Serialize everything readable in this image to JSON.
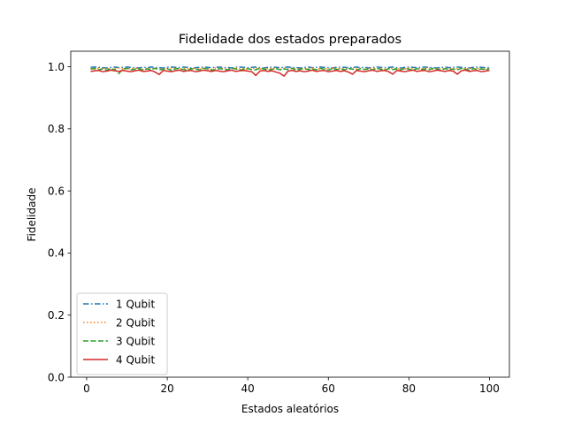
{
  "chart_data": {
    "type": "line",
    "title": "Fidelidade dos estados preparados",
    "xlabel": "Estados aleatórios",
    "ylabel": "Fidelidade",
    "xlim": [
      -3.95,
      104.95
    ],
    "ylim": [
      0.0,
      1.05
    ],
    "xticks": [
      0,
      20,
      40,
      60,
      80,
      100
    ],
    "yticks": [
      0.0,
      0.2,
      0.4,
      0.6,
      0.8,
      1.0
    ],
    "xtick_labels": [
      "0",
      "20",
      "40",
      "60",
      "80",
      "100"
    ],
    "ytick_labels": [
      "0.0",
      "0.2",
      "0.4",
      "0.6",
      "0.8",
      "1.0"
    ],
    "grid": false,
    "legend_position": "lower-left",
    "x_start": 1,
    "series": [
      {
        "name": "1 Qubit",
        "color": "#1f77b4",
        "style": "dashdot",
        "values": [
          0.998,
          0.999,
          0.998,
          0.997,
          0.996,
          0.998,
          0.999,
          0.997,
          0.998,
          0.999,
          0.998,
          0.997,
          0.996,
          0.998,
          0.997,
          0.999,
          0.998,
          0.997,
          0.996,
          0.998,
          0.999,
          0.998,
          0.997,
          0.999,
          0.998,
          0.996,
          0.997,
          0.998,
          0.999,
          0.998,
          0.997,
          0.998,
          0.999,
          0.997,
          0.998,
          0.996,
          0.998,
          0.999,
          0.998,
          0.997,
          0.998,
          0.999,
          0.997,
          0.996,
          0.998,
          0.999,
          0.998,
          0.997,
          0.998,
          0.999,
          0.998,
          0.997,
          0.996,
          0.998,
          0.999,
          0.997,
          0.998,
          0.999,
          0.998,
          0.997,
          0.996,
          0.998,
          0.999,
          0.998,
          0.997,
          0.998,
          0.999,
          0.997,
          0.998,
          0.996,
          0.998,
          0.999,
          0.998,
          0.997,
          0.998,
          0.999,
          0.997,
          0.996,
          0.998,
          0.999,
          0.998,
          0.997,
          0.998,
          0.999,
          0.998,
          0.997,
          0.996,
          0.998,
          0.999,
          0.997,
          0.998,
          0.999,
          0.998,
          0.997,
          0.996,
          0.998,
          0.999,
          0.998,
          0.997,
          0.998
        ]
      },
      {
        "name": "2 Qubit",
        "color": "#ff7f0e",
        "style": "dotted",
        "values": [
          0.995,
          0.992,
          0.996,
          0.993,
          0.995,
          0.991,
          0.994,
          0.996,
          0.992,
          0.995,
          0.993,
          0.996,
          0.994,
          0.991,
          0.995,
          0.993,
          0.996,
          0.992,
          0.994,
          0.995,
          0.993,
          0.996,
          0.991,
          0.994,
          0.995,
          0.992,
          0.996,
          0.993,
          0.995,
          0.994,
          0.991,
          0.996,
          0.993,
          0.995,
          0.992,
          0.994,
          0.996,
          0.993,
          0.995,
          0.991,
          0.994,
          0.996,
          0.992,
          0.995,
          0.993,
          0.996,
          0.994,
          0.991,
          0.995,
          0.993,
          0.996,
          0.992,
          0.994,
          0.995,
          0.993,
          0.996,
          0.991,
          0.994,
          0.995,
          0.992,
          0.996,
          0.993,
          0.995,
          0.994,
          0.991,
          0.996,
          0.993,
          0.995,
          0.992,
          0.994,
          0.996,
          0.993,
          0.995,
          0.991,
          0.994,
          0.996,
          0.992,
          0.995,
          0.993,
          0.996,
          0.994,
          0.991,
          0.995,
          0.993,
          0.996,
          0.992,
          0.994,
          0.995,
          0.993,
          0.996,
          0.991,
          0.994,
          0.995,
          0.992,
          0.996,
          0.993,
          0.995,
          0.994,
          0.992,
          0.995
        ]
      },
      {
        "name": "3 Qubit",
        "color": "#2ca02c",
        "style": "dashed",
        "values": [
          0.992,
          0.995,
          0.99,
          0.993,
          0.989,
          0.994,
          0.991,
          0.978,
          0.993,
          0.995,
          0.99,
          0.992,
          0.994,
          0.989,
          0.993,
          0.991,
          0.995,
          0.99,
          0.992,
          0.994,
          0.988,
          0.993,
          0.995,
          0.991,
          0.989,
          0.994,
          0.992,
          0.99,
          0.995,
          0.993,
          0.989,
          0.991,
          0.994,
          0.992,
          0.99,
          0.995,
          0.993,
          0.989,
          0.992,
          0.994,
          0.991,
          0.99,
          0.995,
          0.993,
          0.989,
          0.992,
          0.994,
          0.99,
          0.993,
          0.991,
          0.995,
          0.989,
          0.992,
          0.994,
          0.991,
          0.993,
          0.99,
          0.995,
          0.992,
          0.989,
          0.994,
          0.991,
          0.993,
          0.99,
          0.995,
          0.992,
          0.989,
          0.994,
          0.991,
          0.993,
          0.99,
          0.995,
          0.992,
          0.989,
          0.994,
          0.991,
          0.993,
          0.99,
          0.995,
          0.992,
          0.989,
          0.994,
          0.991,
          0.993,
          0.99,
          0.995,
          0.992,
          0.989,
          0.994,
          0.991,
          0.993,
          0.99,
          0.995,
          0.992,
          0.989,
          0.994,
          0.991,
          0.993,
          0.99,
          0.994
        ]
      },
      {
        "name": "4 Qubit",
        "color": "#d62728",
        "style": "solid",
        "values": [
          0.985,
          0.987,
          0.988,
          0.984,
          0.986,
          0.989,
          0.987,
          0.985,
          0.988,
          0.986,
          0.984,
          0.987,
          0.989,
          0.985,
          0.986,
          0.988,
          0.983,
          0.975,
          0.988,
          0.986,
          0.984,
          0.987,
          0.989,
          0.985,
          0.987,
          0.988,
          0.984,
          0.986,
          0.989,
          0.987,
          0.985,
          0.988,
          0.986,
          0.984,
          0.987,
          0.989,
          0.985,
          0.987,
          0.988,
          0.986,
          0.984,
          0.972,
          0.986,
          0.988,
          0.985,
          0.987,
          0.983,
          0.979,
          0.97,
          0.986,
          0.988,
          0.985,
          0.987,
          0.984,
          0.986,
          0.989,
          0.985,
          0.987,
          0.988,
          0.984,
          0.986,
          0.988,
          0.985,
          0.987,
          0.983,
          0.976,
          0.988,
          0.986,
          0.984,
          0.987,
          0.989,
          0.985,
          0.987,
          0.988,
          0.984,
          0.976,
          0.988,
          0.986,
          0.984,
          0.987,
          0.989,
          0.985,
          0.987,
          0.988,
          0.984,
          0.986,
          0.989,
          0.987,
          0.985,
          0.988,
          0.986,
          0.976,
          0.987,
          0.989,
          0.985,
          0.987,
          0.988,
          0.984,
          0.986,
          0.988
        ]
      }
    ]
  }
}
